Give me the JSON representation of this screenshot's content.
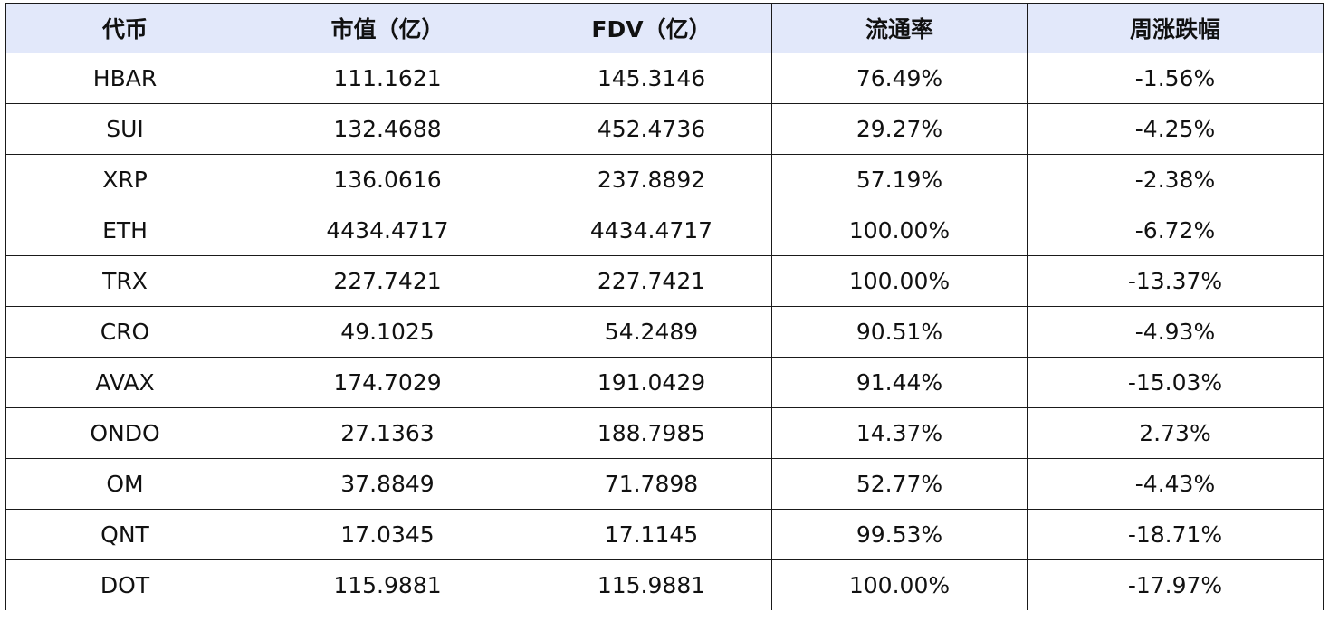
{
  "table": {
    "headers": [
      "代币",
      "市值（亿）",
      "FDV（亿）",
      "流通率",
      "周涨跌幅"
    ],
    "rows": [
      [
        "HBAR",
        "111.1621",
        "145.3146",
        "76.49%",
        "-1.56%"
      ],
      [
        "SUI",
        "132.4688",
        "452.4736",
        "29.27%",
        "-4.25%"
      ],
      [
        "XRP",
        "136.0616",
        "237.8892",
        "57.19%",
        "-2.38%"
      ],
      [
        "ETH",
        "4434.4717",
        "4434.4717",
        "100.00%",
        "-6.72%"
      ],
      [
        "TRX",
        "227.7421",
        "227.7421",
        "100.00%",
        "-13.37%"
      ],
      [
        "CRO",
        "49.1025",
        "54.2489",
        "90.51%",
        "-4.93%"
      ],
      [
        "AVAX",
        "174.7029",
        "191.0429",
        "91.44%",
        "-15.03%"
      ],
      [
        "ONDO",
        "27.1363",
        "188.7985",
        "14.37%",
        "2.73%"
      ],
      [
        "OM",
        "37.8849",
        "71.7898",
        "52.77%",
        "-4.43%"
      ],
      [
        "QNT",
        "17.0345",
        "17.1145",
        "99.53%",
        "-18.71%"
      ],
      [
        "DOT",
        "115.9881",
        "115.9881",
        "100.00%",
        "-17.97%"
      ]
    ]
  }
}
